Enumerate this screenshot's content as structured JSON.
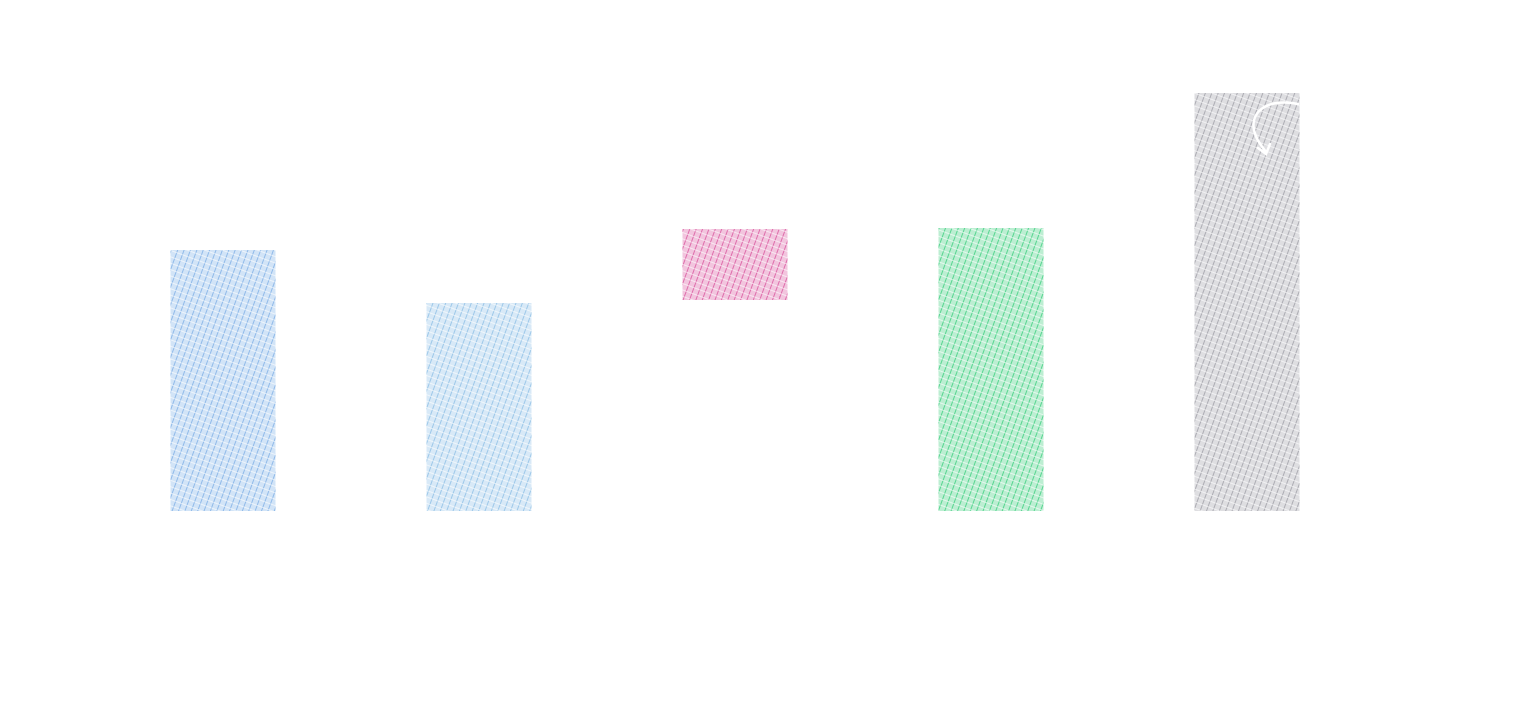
{
  "chart_data": {
    "type": "floating-bar",
    "categories": [
      null,
      null,
      null,
      null,
      null
    ],
    "lows": [
      0,
      0,
      211,
      0,
      0
    ],
    "values": [
      261,
      208,
      282,
      283,
      418
    ],
    "colors": [
      "#7fb0e6",
      "#8fc0e6",
      "#d9589f",
      "#3fcf7f",
      "#a0a0a8"
    ],
    "ylim": [
      0,
      500
    ]
  }
}
